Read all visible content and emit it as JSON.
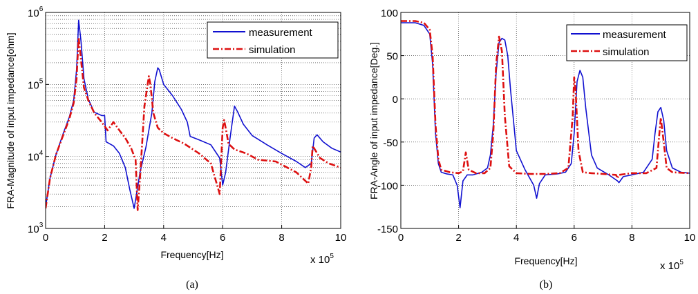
{
  "chart_data": [
    {
      "type": "line",
      "y_scale": "log",
      "xlabel": "Frequency[Hz]",
      "ylabel": "FRA-Magnitude of input impedance[ohm]",
      "x_multiplier_label": "x 10",
      "x_multiplier_exp": "5",
      "caption": "(a)",
      "xlim": [
        0,
        10
      ],
      "ylim": [
        1000,
        1000000
      ],
      "x_ticks": [
        "0",
        "2",
        "4",
        "6",
        "8",
        "10"
      ],
      "y_ticks": [
        {
          "base": "10",
          "exp": "3",
          "value": 1000
        },
        {
          "base": "10",
          "exp": "4",
          "value": 10000
        },
        {
          "base": "10",
          "exp": "5",
          "value": 100000
        },
        {
          "base": "10",
          "exp": "6",
          "value": 1000000
        }
      ],
      "grid": true,
      "legend_position": "top-right",
      "series": [
        {
          "name": "measurement",
          "color": "#1010d0",
          "style": "solid",
          "x": [
            0,
            0.15,
            0.35,
            0.6,
            0.8,
            0.95,
            1.05,
            1.12,
            1.2,
            1.3,
            1.45,
            1.65,
            1.9,
            2.0,
            2.05,
            2.3,
            2.5,
            2.7,
            2.85,
            3.0,
            3.05,
            3.2,
            3.4,
            3.6,
            3.7,
            3.8,
            3.85,
            4.0,
            4.3,
            4.6,
            4.8,
            4.9,
            5.2,
            5.6,
            5.9,
            6.0,
            6.1,
            6.25,
            6.4,
            6.5,
            6.7,
            7.0,
            7.5,
            8.0,
            8.5,
            8.8,
            9.0,
            9.1,
            9.2,
            9.4,
            9.7,
            10.0
          ],
          "y": [
            2000,
            5000,
            10500,
            21000,
            35000,
            60000,
            160000,
            780000,
            400000,
            120000,
            62000,
            41000,
            37000,
            37000,
            16000,
            14000,
            11000,
            7000,
            3500,
            1900,
            2500,
            6000,
            13500,
            40000,
            110000,
            170000,
            160000,
            100000,
            70000,
            45000,
            30000,
            19000,
            17000,
            14500,
            9500,
            4000,
            6000,
            18000,
            50000,
            42000,
            28000,
            19500,
            14500,
            11000,
            8500,
            7000,
            8000,
            18000,
            20000,
            16000,
            13000,
            11500
          ]
        },
        {
          "name": "simulation",
          "color": "#dd1010",
          "style": "dashdot",
          "x": [
            0,
            0.15,
            0.35,
            0.6,
            0.8,
            0.95,
            1.05,
            1.12,
            1.2,
            1.3,
            1.45,
            1.65,
            1.9,
            2.1,
            2.3,
            2.5,
            2.7,
            2.9,
            3.05,
            3.12,
            3.2,
            3.35,
            3.5,
            3.55,
            3.65,
            3.8,
            4.0,
            4.3,
            4.7,
            5.2,
            5.6,
            5.9,
            6.0,
            6.05,
            6.1,
            6.2,
            6.4,
            6.8,
            7.2,
            7.8,
            8.5,
            8.9,
            9.0,
            9.05,
            9.15,
            9.3,
            9.6,
            10.0
          ],
          "y": [
            1900,
            5000,
            10500,
            20000,
            33000,
            55000,
            120000,
            450000,
            220000,
            90000,
            60000,
            40000,
            30000,
            23000,
            30000,
            23000,
            18000,
            13000,
            9000,
            1800,
            5000,
            50000,
            130000,
            100000,
            40000,
            25000,
            21000,
            18000,
            15000,
            11000,
            8000,
            3000,
            25000,
            32000,
            25000,
            15000,
            12500,
            11000,
            9000,
            8500,
            6000,
            4200,
            7000,
            14000,
            12000,
            9500,
            8000,
            7000
          ]
        }
      ]
    },
    {
      "type": "line",
      "y_scale": "linear",
      "xlabel": "Frequency[Hz]",
      "ylabel": "FRA-Angle of input impedance[Deg.]",
      "x_multiplier_label": "x 10",
      "x_multiplier_exp": "5",
      "caption": "(b)",
      "xlim": [
        0,
        10
      ],
      "ylim": [
        -150,
        100
      ],
      "x_ticks": [
        "0",
        "2",
        "4",
        "6",
        "8",
        "10"
      ],
      "y_ticks": [
        "-150",
        "-100",
        "-50",
        "0",
        "50",
        "100"
      ],
      "grid": true,
      "legend_position": "top-right",
      "series": [
        {
          "name": "measurement",
          "color": "#1010d0",
          "style": "solid",
          "x": [
            0,
            0.5,
            0.8,
            1.0,
            1.1,
            1.2,
            1.3,
            1.4,
            1.6,
            1.8,
            1.95,
            2.05,
            2.15,
            2.3,
            2.5,
            2.8,
            3.0,
            3.1,
            3.2,
            3.3,
            3.4,
            3.5,
            3.6,
            3.7,
            3.8,
            4.0,
            4.3,
            4.6,
            4.7,
            4.8,
            5.0,
            5.4,
            5.7,
            5.9,
            6.0,
            6.1,
            6.2,
            6.3,
            6.4,
            6.6,
            6.8,
            7.2,
            7.5,
            7.55,
            7.7,
            8.0,
            8.4,
            8.7,
            8.8,
            8.9,
            9.0,
            9.1,
            9.2,
            9.4,
            9.7,
            10.0
          ],
          "y": [
            88,
            88,
            85,
            75,
            40,
            -40,
            -75,
            -85,
            -87,
            -88,
            -100,
            -126,
            -95,
            -88,
            -88,
            -85,
            -80,
            -65,
            -30,
            30,
            65,
            70,
            68,
            50,
            10,
            -60,
            -82,
            -100,
            -115,
            -98,
            -88,
            -87,
            -85,
            -75,
            -40,
            20,
            33,
            25,
            -10,
            -65,
            -80,
            -88,
            -95,
            -97,
            -90,
            -88,
            -85,
            -70,
            -40,
            -15,
            -10,
            -25,
            -60,
            -80,
            -85,
            -86
          ]
        },
        {
          "name": "simulation",
          "color": "#dd1010",
          "style": "dashdot",
          "x": [
            0,
            0.5,
            0.8,
            1.0,
            1.1,
            1.2,
            1.3,
            1.4,
            1.7,
            2.0,
            2.15,
            2.25,
            2.35,
            2.6,
            2.9,
            3.1,
            3.2,
            3.3,
            3.4,
            3.5,
            3.6,
            3.75,
            4.0,
            4.5,
            5.0,
            5.5,
            5.8,
            5.95,
            6.0,
            6.05,
            6.15,
            6.3,
            6.6,
            7.0,
            7.45,
            7.5,
            7.55,
            8.0,
            8.5,
            8.85,
            8.95,
            9.0,
            9.1,
            9.2,
            9.4,
            10.0
          ],
          "y": [
            90,
            90,
            88,
            80,
            50,
            -30,
            -70,
            -82,
            -85,
            -86,
            -84,
            -62,
            -82,
            -86,
            -86,
            -80,
            -40,
            40,
            72,
            55,
            -20,
            -78,
            -86,
            -87,
            -87,
            -86,
            -80,
            -20,
            25,
            10,
            -60,
            -85,
            -86,
            -87,
            -88,
            -92,
            -88,
            -86,
            -86,
            -80,
            -40,
            -22,
            -50,
            -80,
            -85,
            -86
          ]
        }
      ]
    }
  ]
}
